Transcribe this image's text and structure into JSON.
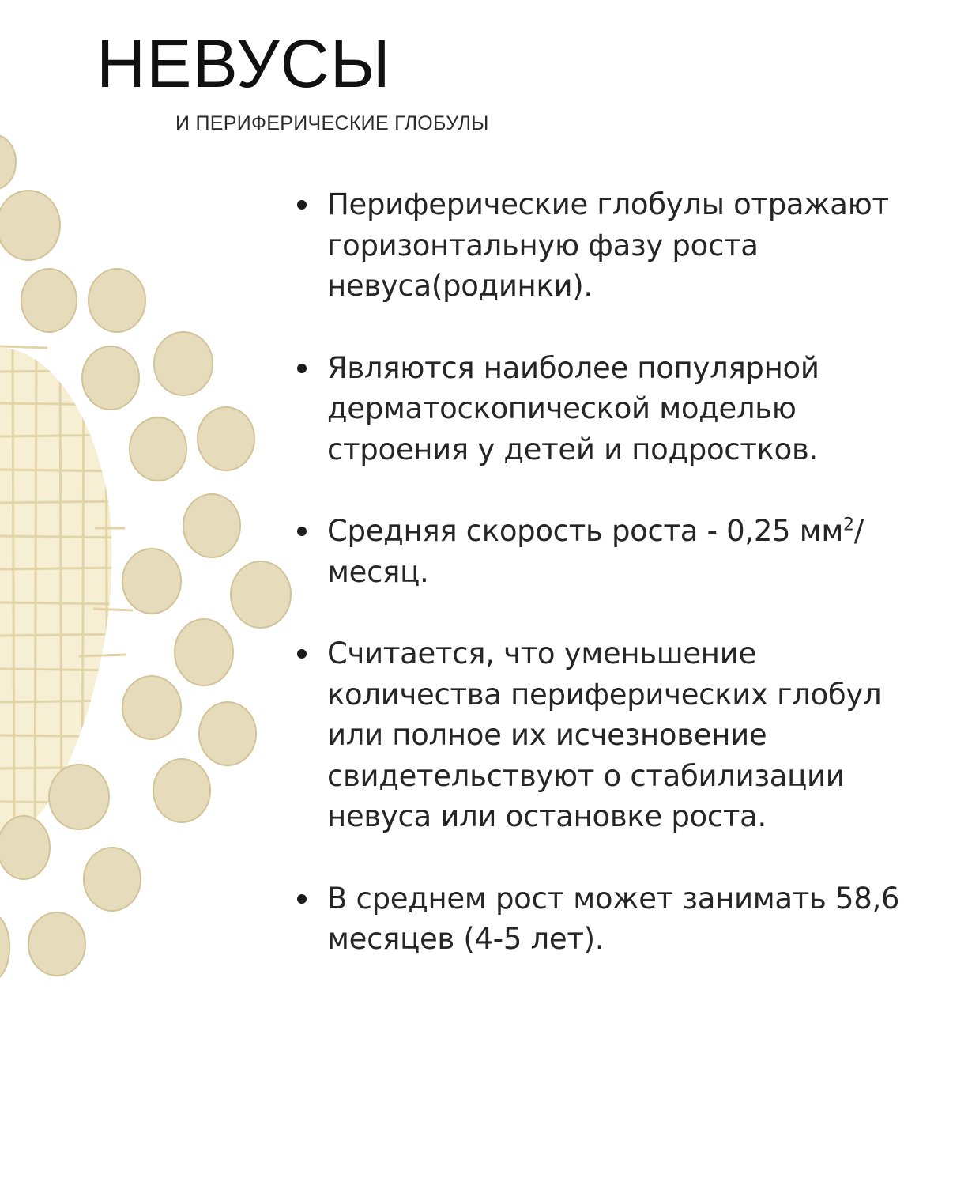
{
  "title": "НЕВУСЫ",
  "subtitle": "И ПЕРИФЕРИЧЕСКИЕ ГЛОБУЛЫ",
  "bullets": [
    {
      "text": "Периферические глобулы отражают горизонтальную фазу роста невуса(родинки)."
    },
    {
      "text": "Являются наиболее популярной дерматоскопической моделью строения у детей и подростков."
    },
    {
      "text_before": "Средняя скорость роста - 0,25 мм",
      "superscript": "2",
      "text_after": "/ месяц."
    },
    {
      "text": "Считается, что уменьшение количества периферических глобул или полное их исчезновение свидетельствуют о стабилизации невуса или остановке роста."
    },
    {
      "text": "В среднем рост может занимать 58,6 месяцев (4-5 лет)."
    }
  ],
  "colors": {
    "globule_fill": "#e6dcbc",
    "globule_stroke": "#d2c498",
    "grid_fill": "#f6efd4",
    "grid_line": "#e2d4a6",
    "text": "#262626"
  },
  "decoration": {
    "icon": "globules-illustration"
  }
}
